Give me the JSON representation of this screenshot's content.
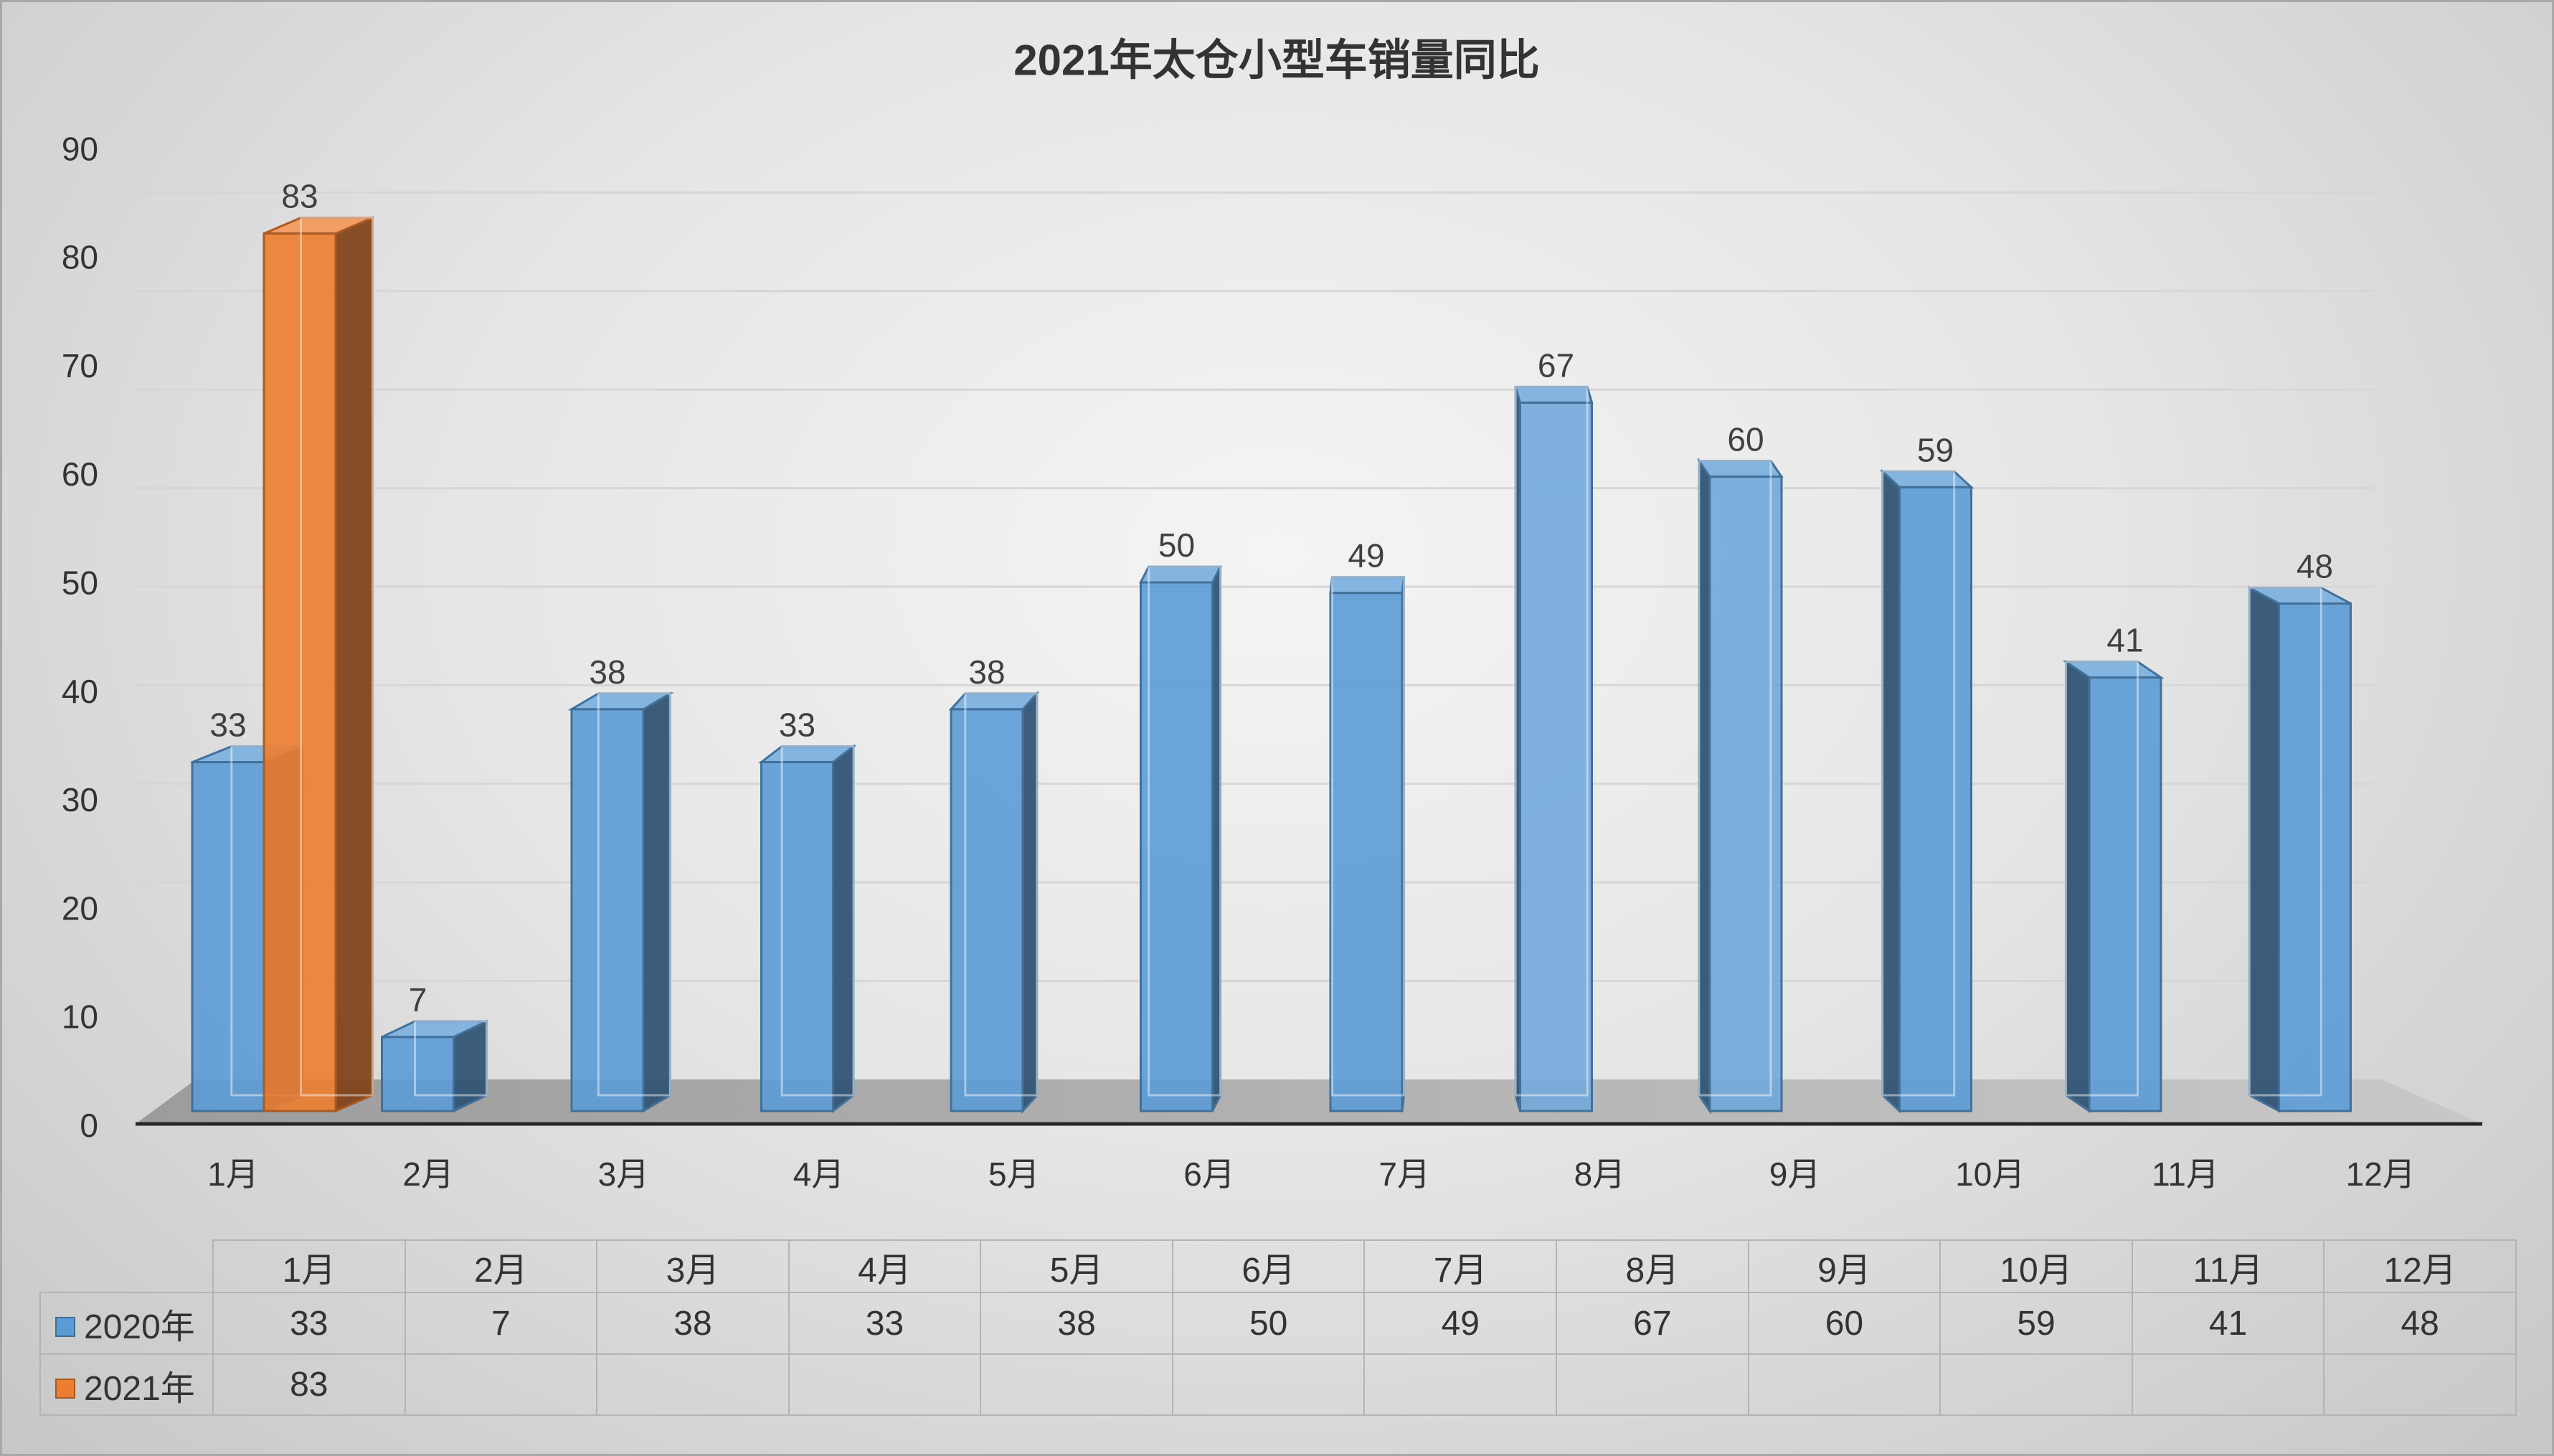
{
  "chart_data": {
    "type": "bar",
    "three_d": true,
    "title": "2021年太仓小型车销量同比",
    "categories": [
      "1月",
      "2月",
      "3月",
      "4月",
      "5月",
      "6月",
      "7月",
      "8月",
      "9月",
      "10月",
      "11月",
      "12月"
    ],
    "series": [
      {
        "name": "2020年",
        "color": "#5b9bd5",
        "values": [
          33,
          7,
          38,
          33,
          38,
          50,
          49,
          67,
          60,
          59,
          41,
          48
        ]
      },
      {
        "name": "2021年",
        "color": "#ed7d31",
        "values": [
          83,
          null,
          null,
          null,
          null,
          null,
          null,
          null,
          null,
          null,
          null,
          null
        ]
      }
    ],
    "ylim": [
      0,
      90
    ],
    "yticks": [
      0,
      10,
      20,
      30,
      40,
      50,
      60,
      70,
      80,
      90
    ],
    "grid": true,
    "legend": "bottom",
    "data_labels": true,
    "data_table": true
  }
}
